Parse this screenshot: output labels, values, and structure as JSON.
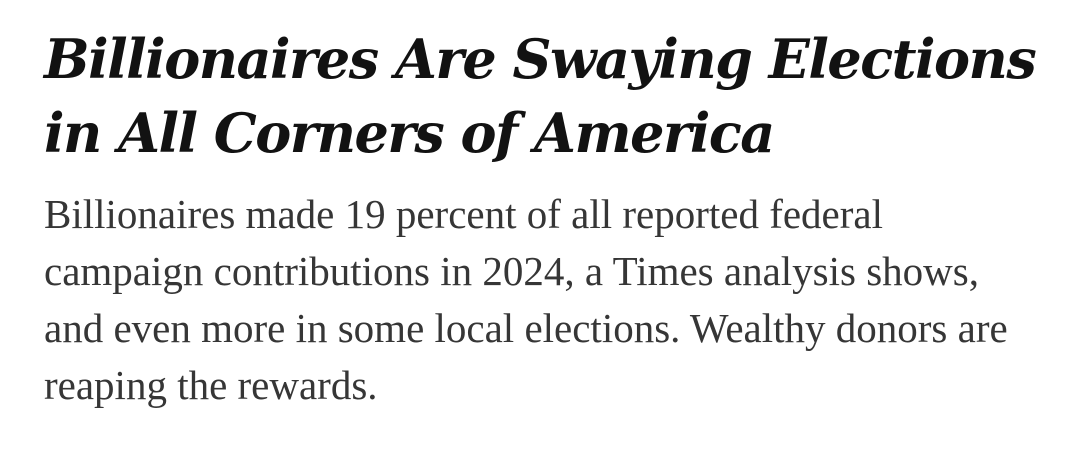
{
  "article": {
    "headline": "Billionaires Are Swaying Elections in All Corners of America",
    "summary": "Billionaires made 19 percent of all reported federal campaign contributions in 2024, a Times analysis shows, and even more in some local elections. Wealthy donors are reaping the rewards."
  },
  "colors": {
    "headline": "#121212",
    "summary": "#363636",
    "background": "#ffffff"
  }
}
